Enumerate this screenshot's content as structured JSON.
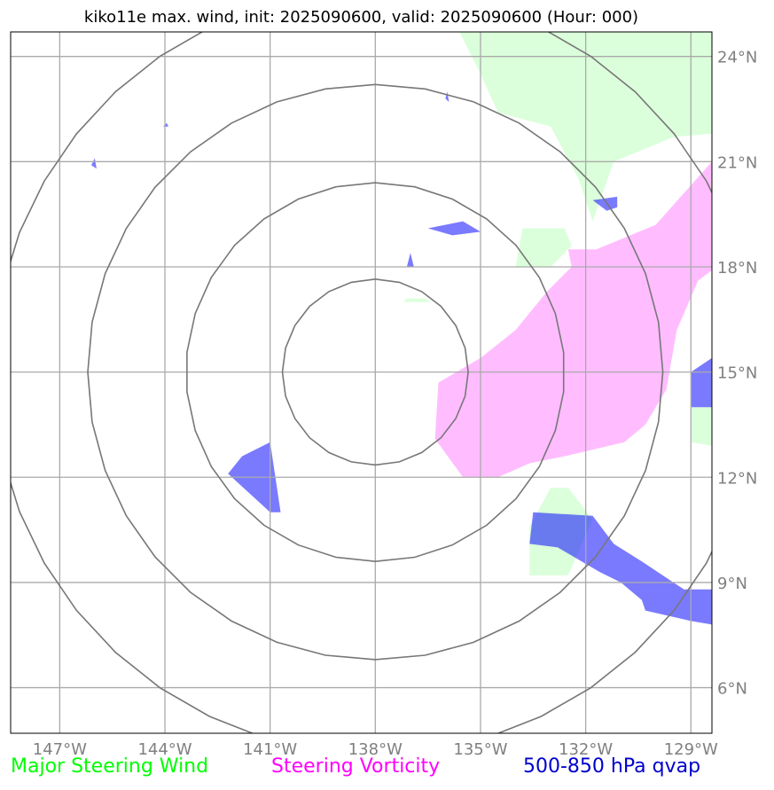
{
  "title": "kiko11e max. wind, init: 2025090600, valid: 2025090600 (Hour: 000)",
  "map": {
    "lon_range": [
      -148.4,
      -128.4
    ],
    "lat_range": [
      4.7,
      24.7
    ],
    "lon_ticks": [
      {
        "value": -147,
        "label": "147°W"
      },
      {
        "value": -144,
        "label": "144°W"
      },
      {
        "value": -141,
        "label": "141°W"
      },
      {
        "value": -138,
        "label": "138°W"
      },
      {
        "value": -135,
        "label": "135°W"
      },
      {
        "value": -132,
        "label": "132°W"
      },
      {
        "value": -129,
        "label": "129°W"
      }
    ],
    "lat_ticks": [
      {
        "value": 24,
        "label": "24°N"
      },
      {
        "value": 21,
        "label": "21°N"
      },
      {
        "value": 18,
        "label": "18°N"
      },
      {
        "value": 15,
        "label": "15°N"
      },
      {
        "value": 12,
        "label": "12°N"
      },
      {
        "value": 9,
        "label": "9°N"
      },
      {
        "value": 6,
        "label": "6°N"
      }
    ],
    "range_rings": {
      "center": {
        "lon": -138,
        "lat": 15
      },
      "radii_deg": [
        2.65,
        5.4,
        8.2,
        10.9
      ]
    },
    "layers": {
      "steering_wind": {
        "color": "#00ff00",
        "areas": [
          [
            [
              -135.6,
              24.7
            ],
            [
              -128.4,
              24.7
            ],
            [
              -128.4,
              21.8
            ],
            [
              -129.5,
              21.7
            ],
            [
              -131.2,
              21.0
            ],
            [
              -131.8,
              19.3
            ],
            [
              -132.2,
              20.5
            ],
            [
              -133.0,
              22.0
            ],
            [
              -134.5,
              22.4
            ],
            [
              -135.0,
              23.5
            ]
          ],
          [
            [
              -134.0,
              18.0
            ],
            [
              -133.0,
              18.0
            ],
            [
              -132.4,
              18.6
            ],
            [
              -132.6,
              19.1
            ],
            [
              -133.8,
              19.1
            ]
          ],
          [
            [
              -133.6,
              10.6
            ],
            [
              -133.6,
              9.2
            ],
            [
              -132.5,
              9.2
            ],
            [
              -131.8,
              10.8
            ],
            [
              -132.5,
              11.7
            ],
            [
              -133.0,
              11.7
            ]
          ],
          [
            [
              -129.0,
              14.0
            ],
            [
              -129.0,
              13.0
            ],
            [
              -128.4,
              12.9
            ],
            [
              -128.4,
              14.0
            ]
          ],
          [
            [
              -137.2,
              17.0
            ],
            [
              -136.4,
              17.0
            ],
            [
              -136.6,
              17.1
            ],
            [
              -137.1,
              17.1
            ]
          ]
        ]
      },
      "steering_vorticity": {
        "color": "#ff00ff",
        "areas": [
          [
            [
              -128.4,
              21.0
            ],
            [
              -130.0,
              19.2
            ],
            [
              -131.7,
              18.5
            ],
            [
              -132.5,
              18.5
            ],
            [
              -132.4,
              18.0
            ],
            [
              -133.1,
              17.3
            ],
            [
              -134.0,
              16.2
            ],
            [
              -135.0,
              15.4
            ],
            [
              -136.2,
              14.7
            ],
            [
              -136.3,
              13.1
            ],
            [
              -135.5,
              12.0
            ],
            [
              -134.5,
              12.0
            ],
            [
              -133.6,
              12.4
            ],
            [
              -132.6,
              12.6
            ],
            [
              -130.9,
              13.0
            ],
            [
              -130.3,
              13.5
            ],
            [
              -129.7,
              14.5
            ],
            [
              -129.4,
              16.2
            ],
            [
              -128.8,
              17.6
            ],
            [
              -128.4,
              17.9
            ]
          ]
        ]
      },
      "qvap": {
        "color": "#0000ff",
        "areas": [
          [
            [
              -142.2,
              12.1
            ],
            [
              -141.8,
              12.6
            ],
            [
              -141.0,
              13.0
            ],
            [
              -140.7,
              11.0
            ],
            [
              -141.0,
              11.0
            ]
          ],
          [
            [
              -133.5,
              11.0
            ],
            [
              -131.8,
              10.9
            ],
            [
              -131.2,
              10.1
            ],
            [
              -130.4,
              9.6
            ],
            [
              -129.2,
              8.8
            ],
            [
              -128.4,
              8.8
            ],
            [
              -128.4,
              7.8
            ],
            [
              -129.0,
              7.9
            ],
            [
              -130.3,
              8.2
            ],
            [
              -130.4,
              8.5
            ],
            [
              -131.0,
              9.0
            ],
            [
              -131.6,
              9.3
            ],
            [
              -132.8,
              10.0
            ],
            [
              -133.6,
              10.1
            ]
          ],
          [
            [
              -128.4,
              15.4
            ],
            [
              -128.4,
              14.0
            ],
            [
              -129.0,
              14.0
            ],
            [
              -129.0,
              15.0
            ]
          ],
          [
            [
              -136.5,
              19.1
            ],
            [
              -135.5,
              19.3
            ],
            [
              -135.0,
              19.0
            ],
            [
              -135.8,
              18.9
            ]
          ],
          [
            [
              -131.8,
              19.9
            ],
            [
              -131.1,
              20.0
            ],
            [
              -131.1,
              19.7
            ],
            [
              -131.4,
              19.6
            ]
          ],
          [
            [
              -137.1,
              18.0
            ],
            [
              -136.9,
              18.0
            ],
            [
              -137.0,
              18.4
            ]
          ],
          [
            [
              -146.0,
              21.1
            ],
            [
              -145.95,
              20.8
            ],
            [
              -146.1,
              20.9
            ]
          ],
          [
            [
              -144.05,
              22.0
            ],
            [
              -143.9,
              22.0
            ],
            [
              -143.95,
              22.1
            ]
          ],
          [
            [
              -135.95,
              23.0
            ],
            [
              -135.9,
              22.7
            ],
            [
              -136.0,
              22.8
            ]
          ]
        ]
      }
    }
  },
  "legend": {
    "steering_wind": "Major Steering Wind",
    "steering_vorticity": "Steering Vorticity",
    "qvap": "500-850 hPa qvap"
  },
  "colors": {
    "steering_wind_text": "#00ff00",
    "steering_vorticity_text": "#ff00ff",
    "qvap_text": "#0000cd",
    "gridline": "#aaaaaa",
    "rings": "#777777",
    "tick_label": "#808080"
  }
}
